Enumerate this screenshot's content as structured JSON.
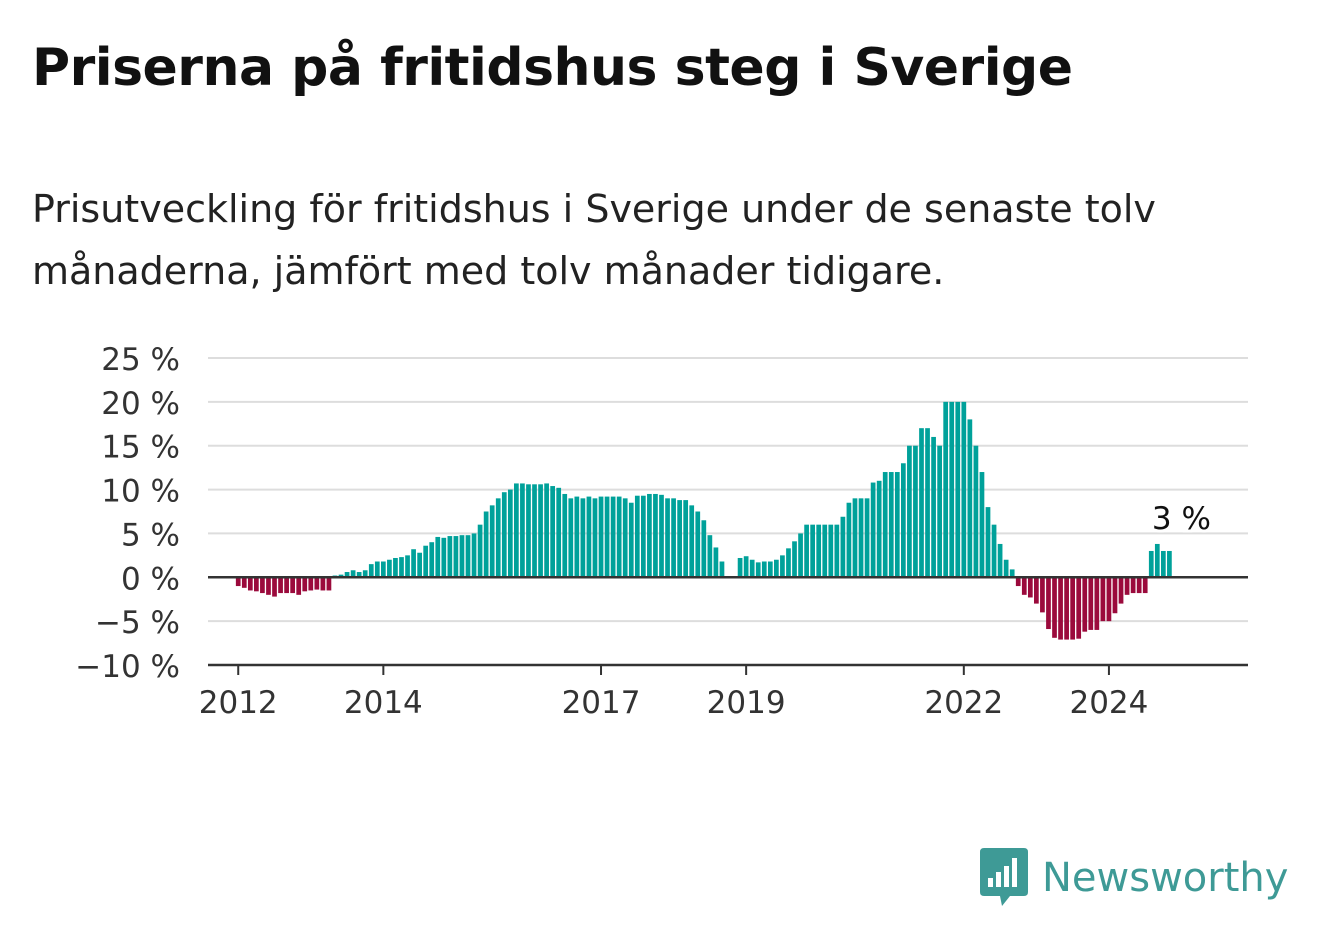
{
  "title": "Priserna på fritidshus steg i Sverige",
  "subtitle": "Prisutveckling för fritidshus i Sverige under de senaste tolv månaderna, jämfört med tolv månader tidigare.",
  "brand": {
    "name": "Newsworthy",
    "color": "#3e9a96",
    "icon": "newsworthy-logo-icon"
  },
  "chart_data": {
    "type": "bar",
    "x_unit": "month",
    "y_unit": "%",
    "ylim": [
      -10,
      25
    ],
    "yticks": [
      25,
      20,
      15,
      10,
      5,
      0,
      -5,
      -10
    ],
    "ytick_labels": [
      "25 %",
      "20 %",
      "15 %",
      "10 %",
      "5 %",
      "0 %",
      "−5 %",
      "−10 %"
    ],
    "xticks": [
      "2012-01",
      "2014-01",
      "2017-01",
      "2019-01",
      "2022-01",
      "2024-01"
    ],
    "xtick_labels": [
      "2012",
      "2014",
      "2017",
      "2019",
      "2022",
      "2024"
    ],
    "x_range": [
      "2011-08",
      "2025-12"
    ],
    "grid": true,
    "colors": {
      "positive": "#00a19a",
      "negative": "#9b0a3c",
      "zero_line": "#333333",
      "grid": "#dddddd"
    },
    "annotation": {
      "x": "2024-12",
      "y": 3,
      "label": "3 %"
    },
    "series": [
      {
        "start": "2012-01",
        "values": [
          -1,
          -1.2,
          -1.5,
          -1.6,
          -1.8,
          -2,
          -2.2,
          -1.8,
          -1.8,
          -1.8,
          -2,
          -1.6,
          -1.5,
          -1.4,
          -1.5,
          -1.5,
          0.2,
          0.3,
          0.6,
          0.8,
          0.6,
          0.8,
          1.5,
          1.8,
          1.8,
          2,
          2.2,
          2.3,
          2.5,
          3.2,
          2.8,
          3.6,
          4,
          4.6,
          4.5,
          4.7,
          4.7,
          4.8,
          4.8,
          5,
          6,
          7.5,
          8.2,
          9,
          9.7,
          10,
          10.7,
          10.7,
          10.6,
          10.6,
          10.6,
          10.7,
          10.4,
          10.2,
          9.5,
          9,
          9.2,
          9,
          9.2,
          9,
          9.2,
          9.2,
          9.2,
          9.2,
          9,
          8.5,
          9.3,
          9.3,
          9.5,
          9.5,
          9.4,
          9,
          9,
          8.8,
          8.8,
          8.2,
          7.5,
          6.5,
          4.8,
          3.4,
          1.8,
          null,
          null,
          2.2,
          2.4,
          2,
          1.7,
          1.8,
          1.8,
          2,
          2.5,
          3.3,
          4.1,
          5,
          6,
          6,
          6,
          6,
          6,
          6,
          6.9,
          8.5,
          9,
          9,
          9,
          10.8,
          11,
          12,
          12,
          12,
          13,
          15,
          15,
          17,
          17,
          16,
          15,
          20,
          20,
          20,
          20,
          18,
          15,
          12,
          8,
          6,
          3.8,
          2,
          0.9,
          -1,
          -2,
          -2.3,
          -3,
          -4,
          -5.9,
          -6.9,
          -7.1,
          -7.1,
          -7.1,
          -7,
          -6.2,
          -6,
          -6,
          -5,
          -5,
          -4.1,
          -3,
          -2,
          -1.8,
          -1.8,
          -1.8,
          3,
          3.8,
          3,
          3
        ]
      }
    ]
  }
}
